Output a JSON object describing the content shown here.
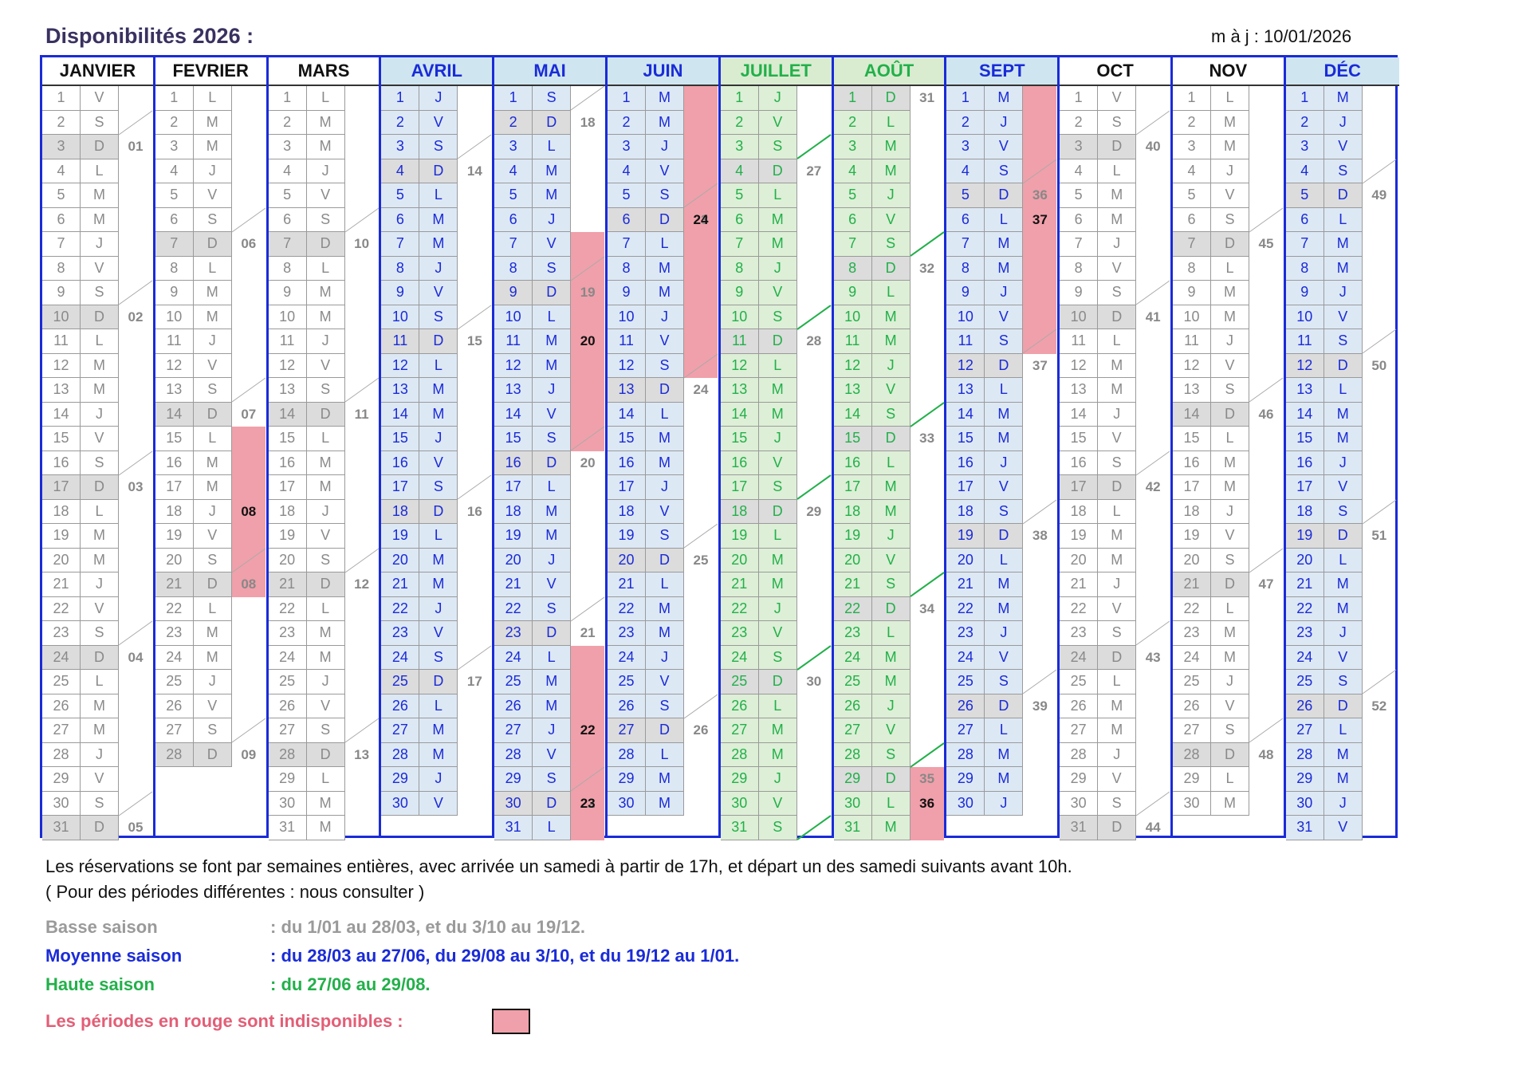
{
  "title": "Disponibilités 2026 :",
  "updated": "m à j : 10/01/2026",
  "colors": {
    "low": "#8a8a8a",
    "mid": "#1a2bd8",
    "high": "#22b04a",
    "unavailable": "#f0a0aa",
    "legend_red": "#e35e76"
  },
  "months": [
    {
      "name": "JANVIER",
      "days": 31,
      "first": 4,
      "season": "low",
      "head_bg": "#ffffff"
    },
    {
      "name": "FEVRIER",
      "days": 28,
      "first": 0,
      "season": "low",
      "head_bg": "#ffffff"
    },
    {
      "name": "MARS",
      "days": 31,
      "first": 0,
      "season": "low",
      "head_bg": "#ffffff"
    },
    {
      "name": "AVRIL",
      "days": 30,
      "first": 3,
      "season": "mid",
      "head_bg": "#cfe6f0"
    },
    {
      "name": "MAI",
      "days": 31,
      "first": 5,
      "season": "mid",
      "head_bg": "#cfe6f0"
    },
    {
      "name": "JUIN",
      "days": 30,
      "first": 1,
      "season": "mid",
      "head_bg": "#cfe6f0"
    },
    {
      "name": "JUILLET",
      "days": 31,
      "first": 3,
      "season": "high",
      "head_bg": "#d9ecd0"
    },
    {
      "name": "AOÛT",
      "days": 31,
      "first": 6,
      "season": "high",
      "head_bg": "#d9ecd0"
    },
    {
      "name": "SEPT",
      "days": 30,
      "first": 2,
      "season": "mid",
      "head_bg": "#cfe6f0"
    },
    {
      "name": "OCT",
      "days": 31,
      "first": 4,
      "season": "low",
      "head_bg": "#ffffff"
    },
    {
      "name": "NOV",
      "days": 30,
      "first": 0,
      "season": "low",
      "head_bg": "#ffffff"
    },
    {
      "name": "DÉC",
      "days": 31,
      "first": 2,
      "season": "mid",
      "head_bg": "#cfe6f0"
    }
  ],
  "day_letters": [
    "L",
    "M",
    "M",
    "J",
    "V",
    "S",
    "D"
  ],
  "unavailable": [
    {
      "month": 1,
      "from": 15,
      "to": 21,
      "label": "08"
    },
    {
      "month": 4,
      "from": 7,
      "to": 15,
      "label": "20"
    },
    {
      "month": 4,
      "from": 24,
      "to": 31,
      "label": "22"
    },
    {
      "month": 4,
      "from": 30,
      "to": 31,
      "label": "23"
    },
    {
      "month": 5,
      "from": 1,
      "to": 12,
      "label": "24"
    },
    {
      "month": 7,
      "from": 29,
      "to": 31,
      "label": "36"
    },
    {
      "month": 8,
      "from": 1,
      "to": 11,
      "label": "37"
    }
  ],
  "text": {
    "line1": "Les réservations se font par semaines entières, avec arrivée un samedi à partir de 17h, et départ un des samedi suivants avant 10h.",
    "line2": "( Pour des périodes différentes : nous consulter )",
    "low_label": "Basse saison",
    "low_value": ": du 1/01 au 28/03, et du  3/10 au 19/12.",
    "mid_label": "Moyenne saison",
    "mid_value": ": du 28/03 au 27/06,  du 29/08 au 3/10, et du 19/12 au 1/01.",
    "high_label": "Haute saison",
    "high_value": ": du  27/06 au 29/08.",
    "red_label": "Les périodes en rouge sont indisponibles :"
  }
}
